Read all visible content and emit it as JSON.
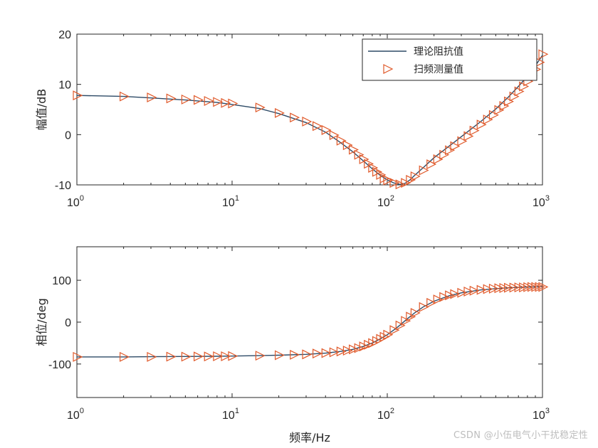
{
  "chart_data": [
    {
      "type": "line",
      "xscale": "log",
      "xlim": [
        1,
        1000
      ],
      "ylim": [
        -10,
        20
      ],
      "ylabel": "幅值/dB",
      "xlabel": "",
      "xticks": [
        {
          "base": "10",
          "exp": "0"
        },
        {
          "base": "10",
          "exp": "1"
        },
        {
          "base": "10",
          "exp": "2"
        },
        {
          "base": "10",
          "exp": "3"
        }
      ],
      "yticks": [
        "-10",
        "0",
        "10",
        "20"
      ],
      "legend": {
        "position": "top-right"
      },
      "series": [
        {
          "name": "理论阻抗值",
          "style": "line",
          "color": "#2d4a66",
          "x": [
            1,
            2,
            3,
            5,
            8,
            10,
            15,
            20,
            30,
            40,
            50,
            60,
            70,
            80,
            90,
            100,
            110,
            120,
            130,
            140,
            150,
            170,
            200,
            250,
            300,
            400,
            500,
            600,
            700,
            800,
            900,
            1000
          ],
          "y": [
            7.8,
            7.6,
            7.3,
            6.9,
            6.4,
            6.0,
            5.2,
            4.2,
            2.4,
            0.5,
            -1.6,
            -3.4,
            -5.2,
            -6.8,
            -8.1,
            -9.0,
            -9.6,
            -9.9,
            -9.7,
            -9.0,
            -8.1,
            -6.6,
            -4.6,
            -2.3,
            -0.4,
            2.6,
            5.1,
            7.4,
            9.6,
            11.6,
            13.7,
            15.8
          ]
        },
        {
          "name": "扫频测量值",
          "style": "markers",
          "marker": "triangle-right",
          "color": "#e05a2b",
          "x": [
            1,
            2,
            3,
            4,
            5,
            6,
            7,
            8,
            9,
            10,
            15,
            20,
            25,
            30,
            35,
            40,
            45,
            50,
            55,
            60,
            65,
            70,
            75,
            80,
            85,
            90,
            95,
            100,
            110,
            120,
            130,
            140,
            150,
            170,
            190,
            210,
            230,
            250,
            270,
            300,
            330,
            360,
            400,
            440,
            480,
            520,
            560,
            600,
            650,
            700,
            750,
            800,
            850,
            900,
            950,
            1000
          ],
          "y": [
            7.8,
            7.6,
            7.4,
            7.2,
            7.0,
            6.9,
            6.7,
            6.5,
            6.3,
            6.2,
            5.4,
            4.3,
            3.4,
            2.6,
            1.7,
            0.9,
            -0.1,
            -1.2,
            -2.1,
            -3.0,
            -4.0,
            -4.9,
            -5.8,
            -6.6,
            -7.4,
            -8.0,
            -8.7,
            -9.1,
            -9.6,
            -9.9,
            -9.6,
            -9.0,
            -8.3,
            -7.1,
            -5.9,
            -4.9,
            -4.0,
            -3.1,
            -2.3,
            -1.3,
            -0.3,
            0.8,
            2.0,
            3.0,
            3.9,
            4.9,
            5.7,
            6.6,
            7.6,
            8.6,
            9.6,
            10.6,
            11.7,
            13.0,
            14.4,
            16.0
          ]
        }
      ]
    },
    {
      "type": "line",
      "xscale": "log",
      "xlim": [
        1,
        1000
      ],
      "ylim": [
        -180,
        180
      ],
      "ylabel": "相位/deg",
      "xlabel": "频率/Hz",
      "xticks": [
        {
          "base": "10",
          "exp": "0"
        },
        {
          "base": "10",
          "exp": "1"
        },
        {
          "base": "10",
          "exp": "2"
        },
        {
          "base": "10",
          "exp": "3"
        }
      ],
      "yticks": [
        "-100",
        "0",
        "100"
      ],
      "series": [
        {
          "name": "理论阻抗值",
          "style": "line",
          "color": "#2d4a66",
          "x": [
            1,
            2,
            3,
            5,
            8,
            10,
            15,
            20,
            30,
            40,
            50,
            60,
            70,
            80,
            90,
            100,
            110,
            120,
            130,
            140,
            150,
            170,
            200,
            250,
            300,
            400,
            500,
            600,
            700,
            800,
            900,
            1000
          ],
          "y": [
            -83,
            -83,
            -82.5,
            -82,
            -81.5,
            -81,
            -80,
            -79,
            -77,
            -74,
            -70,
            -65,
            -58,
            -50,
            -40,
            -30,
            -19,
            -8,
            3,
            13,
            22,
            36,
            50,
            63,
            70,
            77,
            80,
            82,
            83,
            84,
            84,
            85
          ]
        },
        {
          "name": "扫频测量值",
          "style": "markers",
          "marker": "triangle-right",
          "color": "#e05a2b",
          "x": [
            1,
            2,
            3,
            4,
            5,
            6,
            7,
            8,
            9,
            10,
            15,
            20,
            25,
            30,
            35,
            40,
            45,
            50,
            55,
            60,
            65,
            70,
            75,
            80,
            85,
            90,
            95,
            100,
            110,
            120,
            130,
            140,
            150,
            170,
            190,
            210,
            230,
            250,
            270,
            300,
            330,
            360,
            400,
            440,
            480,
            520,
            560,
            600,
            650,
            700,
            750,
            800,
            850,
            900,
            950,
            1000
          ],
          "y": [
            -83,
            -83,
            -83,
            -82.5,
            -82.5,
            -82,
            -82,
            -81.5,
            -81.5,
            -81,
            -80,
            -79,
            -78,
            -77,
            -75,
            -74,
            -72,
            -70,
            -68,
            -65,
            -62,
            -58,
            -54,
            -50,
            -45,
            -40,
            -35,
            -30,
            -19,
            -8,
            3,
            13,
            22,
            36,
            46,
            54,
            60,
            64,
            67,
            70,
            73,
            75,
            77,
            79,
            80,
            81,
            81.5,
            82,
            82.5,
            83,
            83,
            83.5,
            84,
            84,
            84,
            84
          ]
        }
      ]
    }
  ],
  "watermark": "CSDN @小伍电气小干扰稳定性"
}
